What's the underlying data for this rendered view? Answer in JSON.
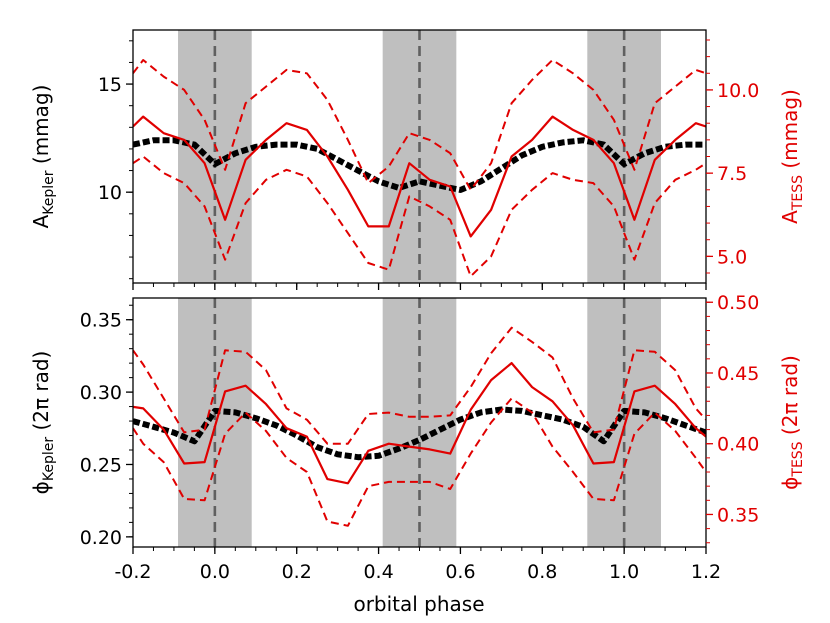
{
  "chart_data": [
    {
      "type": "line",
      "panel": "top",
      "xlim": [
        -0.2,
        1.2
      ],
      "ylim_left": [
        5.8,
        17.5
      ],
      "ylim_right": [
        4.2,
        11.8
      ],
      "yticks_left": [
        10,
        15
      ],
      "yticks_right": [
        5.0,
        7.5,
        10.0
      ],
      "ylabel_left": {
        "main": "A",
        "sub": "Kepler",
        "unit": " (mmag)"
      },
      "ylabel_right": {
        "main": "A",
        "sub": "TESS",
        "unit": " (mmag)"
      },
      "shaded_phase_bands": [
        [
          -0.09,
          0.09
        ],
        [
          0.41,
          0.59
        ],
        [
          0.91,
          1.09
        ]
      ],
      "dashed_vlines": [
        0.0,
        0.5,
        1.0
      ],
      "series": [
        {
          "axis": "left",
          "color": "#000000",
          "style": "thick-dashed",
          "x": [
            -0.2,
            -0.15,
            -0.1,
            -0.05,
            0.0,
            0.05,
            0.1,
            0.15,
            0.2,
            0.25,
            0.3,
            0.35,
            0.4,
            0.45,
            0.5,
            0.55,
            0.6,
            0.65,
            0.7,
            0.75,
            0.8,
            0.85,
            0.9,
            0.95,
            1.0,
            1.05,
            1.1,
            1.15,
            1.2
          ],
          "y": [
            12.2,
            12.4,
            12.4,
            12.2,
            11.3,
            11.8,
            12.1,
            12.2,
            12.2,
            12.0,
            11.5,
            11.0,
            10.5,
            10.2,
            10.5,
            10.3,
            10.1,
            10.5,
            11.1,
            11.7,
            12.1,
            12.3,
            12.4,
            12.2,
            11.3,
            11.8,
            12.1,
            12.2,
            12.2
          ]
        },
        {
          "axis": "right",
          "color": "#e00000",
          "style": "solid",
          "x": [
            -0.2,
            -0.175,
            -0.125,
            -0.075,
            -0.025,
            0.025,
            0.075,
            0.125,
            0.175,
            0.225,
            0.275,
            0.325,
            0.375,
            0.425,
            0.475,
            0.525,
            0.575,
            0.625,
            0.675,
            0.725,
            0.775,
            0.825,
            0.875,
            0.925,
            0.975,
            1.025,
            1.075,
            1.125,
            1.175,
            1.2
          ],
          "y": [
            8.9,
            9.2,
            8.7,
            8.5,
            7.8,
            6.1,
            7.9,
            8.5,
            9.0,
            8.8,
            8.0,
            7.0,
            5.9,
            5.9,
            7.8,
            7.3,
            7.1,
            5.6,
            6.4,
            8.0,
            8.5,
            9.2,
            8.8,
            8.5,
            7.8,
            6.1,
            7.9,
            8.5,
            9.0,
            8.9
          ]
        },
        {
          "axis": "right",
          "color": "#e00000",
          "style": "dashed",
          "x": [
            -0.2,
            -0.175,
            -0.125,
            -0.075,
            -0.025,
            0.025,
            0.075,
            0.125,
            0.175,
            0.225,
            0.275,
            0.325,
            0.375,
            0.425,
            0.475,
            0.525,
            0.575,
            0.625,
            0.675,
            0.725,
            0.775,
            0.825,
            0.875,
            0.925,
            0.975,
            1.025,
            1.075,
            1.125,
            1.175,
            1.2
          ],
          "y": [
            10.5,
            10.9,
            10.4,
            10.0,
            9.1,
            7.6,
            9.6,
            10.1,
            10.6,
            10.5,
            9.7,
            8.5,
            7.2,
            7.7,
            8.7,
            8.5,
            8.1,
            7.0,
            7.8,
            9.6,
            10.3,
            10.9,
            10.5,
            10.0,
            9.1,
            7.6,
            9.6,
            10.1,
            10.6,
            10.5
          ]
        },
        {
          "axis": "right",
          "color": "#e00000",
          "style": "dashed",
          "x": [
            -0.2,
            -0.175,
            -0.125,
            -0.075,
            -0.025,
            0.025,
            0.075,
            0.125,
            0.175,
            0.225,
            0.275,
            0.325,
            0.375,
            0.425,
            0.475,
            0.525,
            0.575,
            0.625,
            0.675,
            0.725,
            0.775,
            0.825,
            0.875,
            0.925,
            0.975,
            1.025,
            1.075,
            1.125,
            1.175,
            1.2
          ],
          "y": [
            7.8,
            8.0,
            7.5,
            7.2,
            6.5,
            4.9,
            6.6,
            7.3,
            7.6,
            7.4,
            6.6,
            5.7,
            4.8,
            4.6,
            6.8,
            6.5,
            6.1,
            4.4,
            5.0,
            6.4,
            7.0,
            7.5,
            7.3,
            7.2,
            6.5,
            4.9,
            6.6,
            7.3,
            7.6,
            7.8
          ]
        }
      ]
    },
    {
      "type": "line",
      "panel": "bottom",
      "xlim": [
        -0.2,
        1.2
      ],
      "xticks": [
        -0.2,
        0.0,
        0.2,
        0.4,
        0.6,
        0.8,
        1.0,
        1.2
      ],
      "xtick_labels": [
        "-0.2",
        "0.0",
        "0.2",
        "0.4",
        "0.6",
        "0.8",
        "1.0",
        "1.2"
      ],
      "xlabel": "orbital phase",
      "ylim_left": [
        0.193,
        0.365
      ],
      "ylim_right": [
        0.327,
        0.503
      ],
      "yticks_left": [
        0.2,
        0.25,
        0.3,
        0.35
      ],
      "yticks_right": [
        0.35,
        0.4,
        0.45,
        0.5
      ],
      "ylabel_left": {
        "main": "ϕ",
        "sub": "Kepler",
        "unit": " (2π rad)"
      },
      "ylabel_right": {
        "main": "ϕ",
        "sub": "TESS",
        "unit": " (2π rad)"
      },
      "shaded_phase_bands": [
        [
          -0.09,
          0.09
        ],
        [
          0.41,
          0.59
        ],
        [
          0.91,
          1.09
        ]
      ],
      "dashed_vlines": [
        0.0,
        0.5,
        1.0
      ],
      "series": [
        {
          "axis": "left",
          "color": "#000000",
          "style": "thick-dashed",
          "x": [
            -0.2,
            -0.15,
            -0.1,
            -0.05,
            0.0,
            0.05,
            0.1,
            0.15,
            0.2,
            0.25,
            0.3,
            0.35,
            0.4,
            0.45,
            0.5,
            0.55,
            0.6,
            0.65,
            0.7,
            0.75,
            0.8,
            0.85,
            0.9,
            0.95,
            1.0,
            1.05,
            1.1,
            1.15,
            1.2
          ],
          "y": [
            0.28,
            0.276,
            0.272,
            0.266,
            0.287,
            0.286,
            0.282,
            0.277,
            0.27,
            0.262,
            0.257,
            0.255,
            0.256,
            0.261,
            0.267,
            0.274,
            0.281,
            0.286,
            0.288,
            0.287,
            0.284,
            0.281,
            0.276,
            0.266,
            0.287,
            0.286,
            0.282,
            0.277,
            0.272
          ]
        },
        {
          "axis": "right",
          "color": "#e00000",
          "style": "solid",
          "x": [
            -0.2,
            -0.175,
            -0.125,
            -0.075,
            -0.025,
            0.025,
            0.075,
            0.125,
            0.175,
            0.225,
            0.275,
            0.325,
            0.375,
            0.425,
            0.475,
            0.525,
            0.575,
            0.625,
            0.675,
            0.725,
            0.775,
            0.825,
            0.875,
            0.925,
            0.975,
            1.025,
            1.075,
            1.125,
            1.175,
            1.2
          ],
          "y": [
            0.426,
            0.425,
            0.41,
            0.386,
            0.387,
            0.437,
            0.441,
            0.428,
            0.411,
            0.405,
            0.375,
            0.372,
            0.395,
            0.4,
            0.398,
            0.396,
            0.393,
            0.424,
            0.445,
            0.457,
            0.44,
            0.43,
            0.413,
            0.386,
            0.387,
            0.437,
            0.441,
            0.428,
            0.411,
            0.405
          ]
        },
        {
          "axis": "right",
          "color": "#e00000",
          "style": "dashed",
          "x": [
            -0.2,
            -0.175,
            -0.125,
            -0.075,
            -0.025,
            0.025,
            0.075,
            0.125,
            0.175,
            0.225,
            0.275,
            0.325,
            0.375,
            0.425,
            0.475,
            0.525,
            0.575,
            0.625,
            0.675,
            0.725,
            0.775,
            0.825,
            0.875,
            0.925,
            0.975,
            1.025,
            1.075,
            1.125,
            1.175,
            1.2
          ],
          "y": [
            0.466,
            0.456,
            0.432,
            0.408,
            0.41,
            0.466,
            0.465,
            0.452,
            0.425,
            0.417,
            0.4,
            0.4,
            0.421,
            0.422,
            0.419,
            0.419,
            0.42,
            0.44,
            0.464,
            0.482,
            0.472,
            0.461,
            0.432,
            0.408,
            0.41,
            0.466,
            0.465,
            0.452,
            0.425,
            0.417
          ]
        },
        {
          "axis": "right",
          "color": "#e00000",
          "style": "dashed",
          "x": [
            -0.2,
            -0.175,
            -0.125,
            -0.075,
            -0.025,
            0.025,
            0.075,
            0.125,
            0.175,
            0.225,
            0.275,
            0.325,
            0.375,
            0.425,
            0.475,
            0.525,
            0.575,
            0.625,
            0.675,
            0.725,
            0.775,
            0.825,
            0.875,
            0.925,
            0.975,
            1.025,
            1.075,
            1.125,
            1.175,
            1.2
          ],
          "y": [
            0.411,
            0.4,
            0.387,
            0.361,
            0.36,
            0.407,
            0.422,
            0.409,
            0.39,
            0.38,
            0.345,
            0.342,
            0.37,
            0.373,
            0.373,
            0.373,
            0.368,
            0.393,
            0.415,
            0.432,
            0.422,
            0.398,
            0.38,
            0.361,
            0.36,
            0.407,
            0.422,
            0.409,
            0.39,
            0.38
          ]
        }
      ]
    }
  ]
}
